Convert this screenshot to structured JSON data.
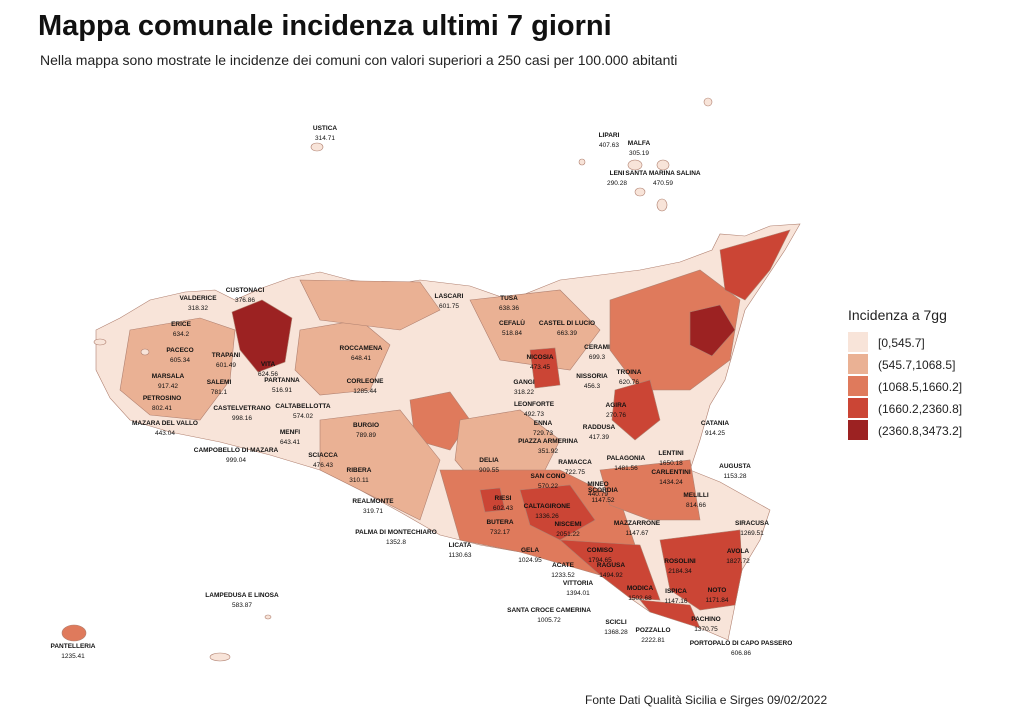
{
  "header": {
    "title": "Mappa comunale incidenza ultimi 7 giorni",
    "subtitle": "Nella mappa sono mostrate le incidenze dei comuni con valori superiori a 250 casi per 100.000 abitanti"
  },
  "legend": {
    "title": "Incidenza a 7gg",
    "classes": [
      {
        "label": "[0,545.7]",
        "color": "#f8e4d9"
      },
      {
        "label": "(545.7,1068.5]",
        "color": "#eab194"
      },
      {
        "label": "(1068.5,1660.2]",
        "color": "#df7a5c"
      },
      {
        "label": "(1660.2,2360.8]",
        "color": "#cb4535"
      },
      {
        "label": "(2360.8,3473.2]",
        "color": "#9c2222"
      }
    ]
  },
  "comuni": [
    {
      "name": "USTICA",
      "value": 314.71
    },
    {
      "name": "LIPARI",
      "value": 407.63
    },
    {
      "name": "MALFA",
      "value": 305.19
    },
    {
      "name": "LENI",
      "value": 290.28
    },
    {
      "name": "SANTA MARINA SALINA",
      "value": 470.59
    },
    {
      "name": "CUSTONACI",
      "value": 376.86
    },
    {
      "name": "VALDERICE",
      "value": 318.32
    },
    {
      "name": "ERICE",
      "value": 634.2
    },
    {
      "name": "PACECO",
      "value": 605.34
    },
    {
      "name": "TRAPANI",
      "value": 601.49
    },
    {
      "name": "VITA",
      "value": 624.56
    },
    {
      "name": "MARSALA",
      "value": 917.42
    },
    {
      "name": "SALEMI",
      "value": 781.1
    },
    {
      "name": "PETROSINO",
      "value": 802.41
    },
    {
      "name": "CASTELVETRANO",
      "value": 998.16
    },
    {
      "name": "MAZARA DEL VALLO",
      "value": 443.04
    },
    {
      "name": "CAMPOBELLO DI MAZARA",
      "value": 999.04
    },
    {
      "name": "PARTANNA",
      "value": 516.91
    },
    {
      "name": "ROCCAMENA",
      "value": 648.41
    },
    {
      "name": "CORLEONE",
      "value": 1285.44
    },
    {
      "name": "CALTABELLOTTA",
      "value": 574.02
    },
    {
      "name": "MENFI",
      "value": 643.41
    },
    {
      "name": "BURGIO",
      "value": 789.89
    },
    {
      "name": "SCIACCA",
      "value": 476.43
    },
    {
      "name": "RIBERA",
      "value": 310.11
    },
    {
      "name": "REALMONTE",
      "value": 319.71
    },
    {
      "name": "PALMA DI MONTECHIARO",
      "value": 1352.8
    },
    {
      "name": "LICATA",
      "value": 1130.63
    },
    {
      "name": "LASCARI",
      "value": 601.75
    },
    {
      "name": "TUSA",
      "value": 638.36
    },
    {
      "name": "CEFALÙ",
      "value": 518.84
    },
    {
      "name": "CASTEL DI LUCIO",
      "value": 663.39
    },
    {
      "name": "NICOSIA",
      "value": 473.45
    },
    {
      "name": "CERAMI",
      "value": 699.3
    },
    {
      "name": "GANGI",
      "value": 318.22
    },
    {
      "name": "NISSORIA",
      "value": 456.3
    },
    {
      "name": "TROINA",
      "value": 620.76
    },
    {
      "name": "LEONFORTE",
      "value": 492.73
    },
    {
      "name": "AGIRA",
      "value": 270.76
    },
    {
      "name": "ENNA",
      "value": 729.73
    },
    {
      "name": "RADDUSA",
      "value": 417.39
    },
    {
      "name": "PIAZZA ARMERINA",
      "value": 351.92
    },
    {
      "name": "DELIA",
      "value": 909.55
    },
    {
      "name": "RAMACCA",
      "value": 722.75
    },
    {
      "name": "PALAGONIA",
      "value": 1481.56
    },
    {
      "name": "LENTINI",
      "value": 1650.18
    },
    {
      "name": "CATANIA",
      "value": 914.25
    },
    {
      "name": "CARLENTINI",
      "value": 1434.24
    },
    {
      "name": "AUGUSTA",
      "value": 1153.28
    },
    {
      "name": "SAN CONO",
      "value": 570.22
    },
    {
      "name": "MINEO",
      "value": 440.79
    },
    {
      "name": "RIESI",
      "value": 602.43
    },
    {
      "name": "CALTAGIRONE",
      "value": 1336.26
    },
    {
      "name": "SCORDIA",
      "value": 1147.52
    },
    {
      "name": "MELILLI",
      "value": 814.66
    },
    {
      "name": "BUTERA",
      "value": 732.17
    },
    {
      "name": "NISCEMI",
      "value": 2051.22
    },
    {
      "name": "MAZZARRONE",
      "value": 1147.67
    },
    {
      "name": "SIRACUSA",
      "value": 1269.51
    },
    {
      "name": "GELA",
      "value": 1024.95
    },
    {
      "name": "COMISO",
      "value": 1794.65
    },
    {
      "name": "AVOLA",
      "value": 1827.72
    },
    {
      "name": "ACATE",
      "value": 1233.52
    },
    {
      "name": "RAGUSA",
      "value": 1494.92
    },
    {
      "name": "ROSOLINI",
      "value": 2184.34
    },
    {
      "name": "VITTORIA",
      "value": 1394.01
    },
    {
      "name": "MODICA",
      "value": 1502.68
    },
    {
      "name": "ISPICA",
      "value": 1147.16
    },
    {
      "name": "NOTO",
      "value": 1171.84
    },
    {
      "name": "SANTA CROCE CAMERINA",
      "value": 1005.72
    },
    {
      "name": "PACHINO",
      "value": 1370.75
    },
    {
      "name": "SCICLI",
      "value": 1368.28
    },
    {
      "name": "POZZALLO",
      "value": 2222.81
    },
    {
      "name": "PORTOPALO DI CAPO PASSERO",
      "value": 606.86
    },
    {
      "name": "LAMPEDUSA E LINOSA",
      "value": 583.87
    },
    {
      "name": "PANTELLERIA",
      "value": 1235.41
    }
  ],
  "footer": {
    "source": "Fonte Dati Qualità Sicilia e Sirges 09/02/2022"
  }
}
